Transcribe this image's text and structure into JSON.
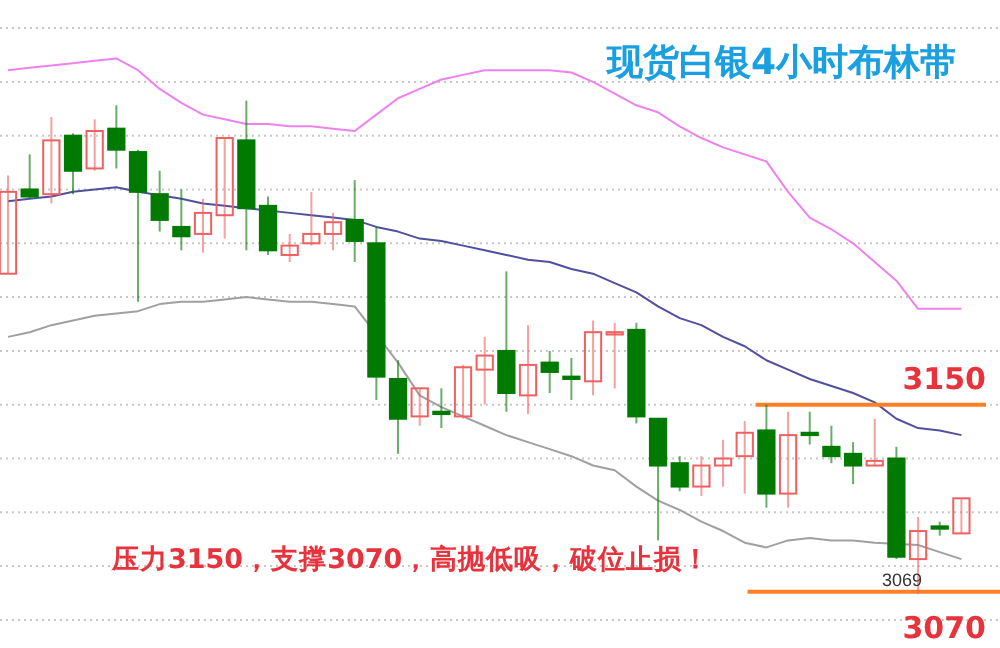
{
  "chart_data": {
    "type": "candlestick",
    "title": "现货白银4小时布林带",
    "categories": [
      null,
      null,
      null,
      null,
      null,
      null,
      null,
      null,
      null,
      null,
      null,
      null,
      null,
      null,
      null,
      null,
      null,
      null,
      null,
      null,
      null,
      null,
      null,
      null,
      null,
      null,
      null,
      null,
      null,
      null,
      null,
      null,
      null,
      null,
      null,
      null,
      null,
      null,
      null,
      null,
      null,
      null,
      null,
      null,
      null
    ],
    "ohlc": [
      [
        3206,
        3248,
        3206,
        3241
      ],
      [
        3242,
        3257,
        3238,
        3239
      ],
      [
        3240,
        3273,
        3236,
        3263
      ],
      [
        3265,
        3266,
        3240,
        3250
      ],
      [
        3251,
        3272,
        3250,
        3267
      ],
      [
        3268,
        3278,
        3251,
        3259
      ],
      [
        3258,
        3259,
        3194,
        3241
      ],
      [
        3240,
        3250,
        3224,
        3229
      ],
      [
        3226,
        3242,
        3216,
        3222
      ],
      [
        3223,
        3238,
        3215,
        3232
      ],
      [
        3231,
        3264,
        3221,
        3264
      ],
      [
        3263,
        3280,
        3216,
        3234
      ],
      [
        3235,
        3239,
        3214,
        3216
      ],
      [
        3214,
        3223,
        3211,
        3218
      ],
      [
        3219,
        3241,
        3218,
        3223
      ],
      [
        3223,
        3232,
        3216,
        3228
      ],
      [
        3229,
        3246,
        3211,
        3220
      ],
      [
        3219,
        3226,
        3152,
        3162
      ],
      [
        3161,
        3169,
        3129,
        3144
      ],
      [
        3145,
        3157,
        3141,
        3157
      ],
      [
        3147,
        3157,
        3140,
        3146
      ],
      [
        3145,
        3167,
        3144,
        3166
      ],
      [
        3165,
        3179,
        3150,
        3171
      ],
      [
        3173,
        3207,
        3147,
        3155
      ],
      [
        3154,
        3184,
        3146,
        3167
      ],
      [
        3168,
        3173,
        3155,
        3164
      ],
      [
        3162,
        3170,
        3152,
        3161
      ],
      [
        3160,
        3186,
        3154,
        3181
      ],
      [
        3180,
        3185,
        3157,
        3181
      ],
      [
        3182,
        3185,
        3142,
        3145
      ],
      [
        3144,
        3144,
        3092,
        3124
      ],
      [
        3125,
        3128,
        3113,
        3115
      ],
      [
        3115,
        3128,
        3111,
        3124
      ],
      [
        3124,
        3135,
        3115,
        3127
      ],
      [
        3128,
        3143,
        3112,
        3138
      ],
      [
        3139,
        3150,
        3106,
        3112
      ],
      [
        3112,
        3147,
        3106,
        3137
      ],
      [
        3138,
        3147,
        3133,
        3137
      ],
      [
        3132,
        3141,
        3125,
        3128
      ],
      [
        3129,
        3134,
        3116,
        3124
      ],
      [
        3124,
        3144,
        3124,
        3126
      ],
      [
        3127,
        3132,
        3084,
        3085
      ],
      [
        3084,
        3102,
        3069,
        3096
      ],
      [
        3098,
        3100,
        3094,
        3097
      ],
      [
        3095,
        3110,
        3095,
        3110
      ]
    ],
    "colors": [
      "#f06060",
      "#007a00",
      "#f06060",
      "#007a00",
      "#f06060",
      "#007a00",
      "#007a00",
      "#007a00",
      "#007a00",
      "#f06060",
      "#f06060",
      "#007a00",
      "#007a00",
      "#f06060",
      "#f06060",
      "#f06060",
      "#007a00",
      "#007a00",
      "#007a00",
      "#f06060",
      "#007a00",
      "#f06060",
      "#f06060",
      "#007a00",
      "#f06060",
      "#007a00",
      "#007a00",
      "#f06060",
      "#f06060",
      "#007a00",
      "#007a00",
      "#007a00",
      "#f06060",
      "#f06060",
      "#f06060",
      "#007a00",
      "#f06060",
      "#007a00",
      "#007a00",
      "#007a00",
      "#f06060",
      "#007a00",
      "#f06060",
      "#007a00",
      "#f06060"
    ],
    "series": [
      {
        "type": "line",
        "color": "#ee82ee",
        "values": [
          3293,
          3294,
          3295,
          3296,
          3297,
          3298,
          3293,
          3285,
          3279,
          3274,
          3272,
          3270,
          3270,
          3269,
          3269,
          3268,
          3267,
          3274,
          3281,
          3285,
          3289,
          3291,
          3293,
          3293,
          3293,
          3293,
          3292,
          3288,
          3283,
          3278,
          3275,
          3269,
          3264,
          3260,
          3257,
          3254,
          3241,
          3230,
          3225,
          3219,
          3211,
          3203,
          3191,
          3191,
          3191
        ]
      },
      {
        "type": "line",
        "color": "#5050a0",
        "values": [
          3237,
          3238,
          3239,
          3241,
          3242,
          3243,
          3241,
          null,
          3238,
          3236,
          3235,
          3234,
          null,
          3232,
          3231,
          3230,
          3229,
          3226,
          3224,
          3221,
          3220,
          3218,
          3216,
          3214,
          3212,
          3211,
          3208,
          3206,
          3202,
          3198,
          3192,
          3187,
          3184,
          3179,
          3175,
          3169,
          3165,
          3161,
          3158,
          3155,
          3151,
          3144,
          3140,
          3139,
          3137
        ]
      },
      {
        "type": "line",
        "color": "#a0a0a0",
        "values": [
          3179,
          3181,
          3184,
          3186,
          3188,
          3189,
          3190,
          3193,
          3194,
          3194,
          3195,
          3196,
          3195,
          3194,
          3194,
          3193,
          3192,
          null,
          3168,
          3154,
          3149,
          3145,
          3141,
          3137,
          3134,
          3131,
          3128,
          3124,
          3122,
          3115,
          3109,
          3105,
          3100,
          3096,
          3091,
          3089,
          3092,
          3093,
          3092,
          3092,
          3091,
          null,
          3090,
          3087,
          3084
        ]
      }
    ],
    "ylim": [
      3046,
      3323
    ],
    "yticks": [
      {
        "value": 3058,
        "label": null
      },
      {
        "value": 3081,
        "label": null
      },
      {
        "value": 3104,
        "label": null
      },
      {
        "value": 3127,
        "label": null
      },
      {
        "value": 3150,
        "label": null
      },
      {
        "value": 3173,
        "label": null
      },
      {
        "value": 3196,
        "label": null
      },
      {
        "value": 3219,
        "label": null
      },
      {
        "value": 3242,
        "label": null
      },
      {
        "value": 3265,
        "label": null
      },
      {
        "value": 3288,
        "label": null
      },
      {
        "value": 3311,
        "label": null
      }
    ],
    "grid": "y",
    "ref_lines": [
      {
        "axis": "y",
        "value": 3150,
        "label": "3150",
        "color": "#ff7f27"
      },
      {
        "axis": "y",
        "value": 3070,
        "label": "3070",
        "color": "#ff7f27"
      }
    ],
    "annotations": [
      {
        "text": "3069",
        "y": 3069
      },
      "压力3150，支撑3070，高抛低吸，破位止损！"
    ]
  }
}
